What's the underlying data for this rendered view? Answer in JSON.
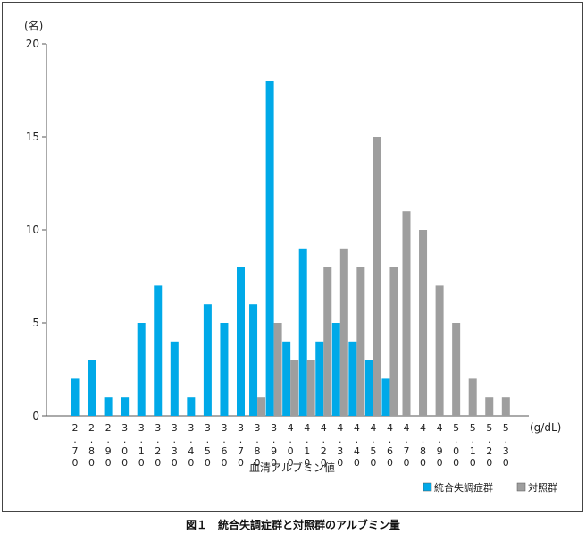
{
  "caption": "図１　統合失調症群と対照群のアルブミン量",
  "chart_data": {
    "type": "bar",
    "ylabel": "(名)",
    "xlabel": "血清アルブミン値",
    "xunit": "(g/dL)",
    "ylim": [
      0,
      20
    ],
    "yticks": [
      0,
      5,
      10,
      15,
      20
    ],
    "categories": [
      "2.70",
      "2.80",
      "2.90",
      "3.00",
      "3.10",
      "3.20",
      "3.30",
      "3.40",
      "3.50",
      "3.60",
      "3.70",
      "3.80",
      "3.90",
      "4.00",
      "4.10",
      "4.20",
      "4.30",
      "4.40",
      "4.50",
      "4.60",
      "4.70",
      "4.80",
      "4.90",
      "5.00",
      "5.10",
      "5.20",
      "5.30"
    ],
    "series": [
      {
        "name": "統合失調症群",
        "color": "#00a9e8",
        "values": [
          2,
          3,
          1,
          1,
          5,
          7,
          4,
          1,
          6,
          5,
          8,
          6,
          18,
          4,
          9,
          4,
          5,
          4,
          3,
          2,
          0,
          0,
          0,
          0,
          0,
          0,
          0
        ]
      },
      {
        "name": "対照群",
        "color": "#9e9e9e",
        "values": [
          0,
          0,
          0,
          0,
          0,
          0,
          0,
          0,
          0,
          0,
          0,
          1,
          5,
          3,
          3,
          8,
          9,
          8,
          15,
          8,
          11,
          10,
          7,
          5,
          2,
          1,
          1
        ]
      }
    ],
    "legend_position": "bottom-right"
  }
}
